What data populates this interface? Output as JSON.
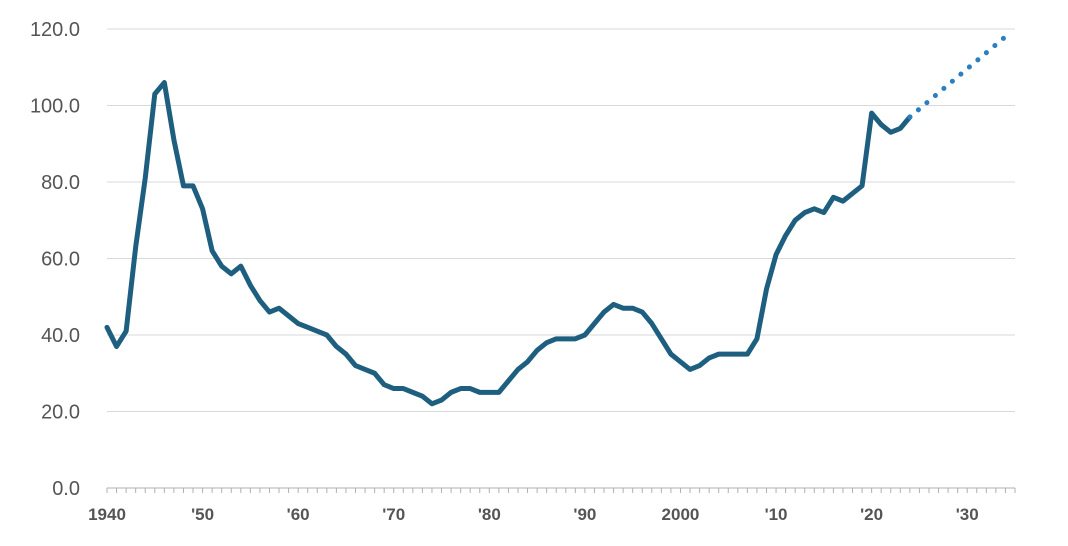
{
  "chart_data": {
    "type": "line",
    "title": "",
    "xlabel": "",
    "ylabel": "",
    "xlim": [
      1940,
      2035
    ],
    "ylim": [
      0,
      120
    ],
    "grid": true,
    "y_ticks": [
      0,
      20,
      40,
      60,
      80,
      100,
      120
    ],
    "y_tick_labels": [
      "0.0",
      "20.0",
      "40.0",
      "60.0",
      "80.0",
      "100.0",
      "120.0"
    ],
    "x_ticks": [
      1940,
      1950,
      1960,
      1970,
      1980,
      1990,
      2000,
      2010,
      2020,
      2030
    ],
    "x_tick_labels": [
      "1940",
      "'50",
      "'60",
      "'70",
      "'80",
      "'90",
      "2000",
      "'10",
      "'20",
      "'30"
    ],
    "colors": {
      "actual": "#1e5f80",
      "projected": "#2a7ec2"
    },
    "series": [
      {
        "style": "solid",
        "x": [
          1940,
          1941,
          1942,
          1943,
          1944,
          1945,
          1946,
          1947,
          1948,
          1949,
          1950,
          1951,
          1952,
          1953,
          1954,
          1955,
          1956,
          1957,
          1958,
          1959,
          1960,
          1961,
          1962,
          1963,
          1964,
          1965,
          1966,
          1967,
          1968,
          1969,
          1970,
          1971,
          1972,
          1973,
          1974,
          1975,
          1976,
          1977,
          1978,
          1979,
          1980,
          1981,
          1982,
          1983,
          1984,
          1985,
          1986,
          1987,
          1988,
          1989,
          1990,
          1991,
          1992,
          1993,
          1994,
          1995,
          1996,
          1997,
          1998,
          1999,
          2000,
          2001,
          2002,
          2003,
          2004,
          2005,
          2006,
          2007,
          2008,
          2009,
          2010,
          2011,
          2012,
          2013,
          2014,
          2015,
          2016,
          2017,
          2018,
          2019,
          2020,
          2021,
          2022,
          2023,
          2024
        ],
        "values": [
          42,
          37,
          41,
          63,
          81,
          103,
          106,
          91,
          79,
          79,
          73,
          62,
          58,
          56,
          58,
          53,
          49,
          46,
          47,
          45,
          43,
          42,
          41,
          40,
          37,
          35,
          32,
          31,
          30,
          27,
          26,
          26,
          25,
          24,
          22,
          23,
          25,
          26,
          26,
          25,
          25,
          25,
          28,
          31,
          33,
          36,
          38,
          39,
          39,
          39,
          40,
          43,
          46,
          48,
          47,
          47,
          46,
          43,
          39,
          35,
          33,
          31,
          32,
          34,
          35,
          35,
          35,
          35,
          39,
          52,
          61,
          66,
          70,
          72,
          73,
          72,
          76,
          75,
          77,
          79,
          98,
          95,
          93,
          94,
          97
        ]
      },
      {
        "style": "dotted",
        "x": [
          2024,
          2034
        ],
        "values": [
          97,
          118
        ]
      }
    ]
  }
}
